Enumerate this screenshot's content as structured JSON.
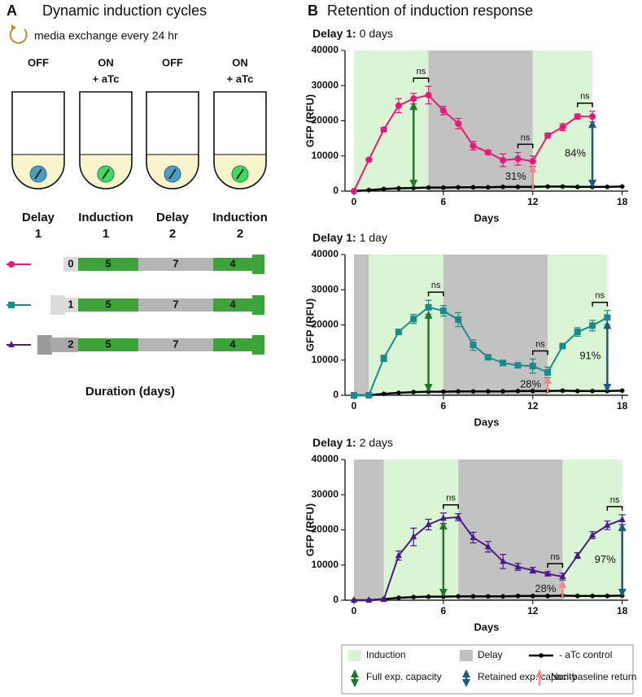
{
  "panel_a": {
    "letter": "A",
    "title": "Dynamic induction cycles",
    "media_note": "media exchange every 24 hr",
    "tubes": [
      {
        "state": "OFF",
        "induced": false
      },
      {
        "state": "ON",
        "note": "+ aTc",
        "induced": true
      },
      {
        "state": "OFF",
        "induced": false
      },
      {
        "state": "ON",
        "note": "+ aTc",
        "induced": true
      }
    ],
    "phases": [
      {
        "name": "Delay",
        "number": "1"
      },
      {
        "name": "Induction",
        "number": "1"
      },
      {
        "name": "Delay",
        "number": "2"
      },
      {
        "name": "Induction",
        "number": "2"
      }
    ],
    "schedule": [
      {
        "marker": "circle",
        "color": "#e8197a",
        "delay": 0,
        "durations": [
          5,
          7,
          4
        ]
      },
      {
        "marker": "square",
        "color": "#1a8a8a",
        "delay": 1,
        "durations": [
          5,
          7,
          4
        ]
      },
      {
        "marker": "triangle",
        "color": "#4b1a8a",
        "delay": 2,
        "durations": [
          5,
          7,
          4
        ]
      }
    ],
    "schedule_label": "Duration (days)"
  },
  "panel_b": {
    "letter": "B",
    "title": "Retention of induction response"
  },
  "legend": {
    "items": [
      {
        "label": "Induction",
        "kind": "induction",
        "color": "#d9f5d4"
      },
      {
        "label": "Delay",
        "kind": "delay",
        "color": "#c2c2c2"
      },
      {
        "label": "- aTc control",
        "kind": "control",
        "color": "#000000"
      },
      {
        "label": "Full exp. capacity",
        "kind": "full",
        "color": "#1a7a2a"
      },
      {
        "label": "Retained exp. capacity",
        "kind": "retained",
        "color": "#1a5a8a"
      },
      {
        "label": "Non-baseline return",
        "kind": "baseline",
        "color": "#f08a8a"
      }
    ]
  },
  "chart_data": [
    {
      "type": "line",
      "title": "Delay 1:",
      "subtitle": "0 days",
      "xlabel": "Days",
      "ylabel": "GFP (RFU)",
      "xlim": [
        -0.6,
        18.4
      ],
      "ylim": [
        0,
        40000
      ],
      "xticks": [
        0,
        6,
        12,
        18
      ],
      "yticks": [
        0,
        10000,
        20000,
        30000,
        40000
      ],
      "regions": [
        {
          "kind": "induction",
          "from": 0,
          "to": 5
        },
        {
          "kind": "delay",
          "from": 5,
          "to": 12
        },
        {
          "kind": "induction",
          "from": 12,
          "to": 16
        }
      ],
      "series": [
        {
          "color": "#e8197a",
          "marker": "circle",
          "x": [
            0,
            1,
            2,
            3,
            4,
            5,
            6,
            7,
            8,
            9,
            10,
            11,
            12,
            13,
            14,
            15,
            16
          ],
          "values": [
            0,
            8900,
            17500,
            24300,
            26300,
            27300,
            22900,
            19200,
            12900,
            11000,
            8800,
            9200,
            8500,
            15800,
            18200,
            21200,
            21200
          ],
          "errors": [
            0,
            400,
            600,
            2000,
            1500,
            2500,
            1200,
            1500,
            1200,
            600,
            1800,
            1800,
            1500,
            700,
            1000,
            700,
            1500
          ]
        },
        {
          "color": "#000000",
          "marker": "star",
          "x": [
            0,
            1,
            2,
            3,
            4,
            5,
            6,
            7,
            8,
            9,
            10,
            11,
            12,
            13,
            14,
            15,
            16,
            17,
            18
          ],
          "values": [
            0,
            300,
            600,
            800,
            900,
            1000,
            1000,
            1100,
            1100,
            1100,
            1200,
            1200,
            1200,
            1300,
            1300,
            1200,
            1200,
            1200,
            1300
          ]
        }
      ],
      "brackets": [
        {
          "label": "ns",
          "from": 4,
          "to": 5
        },
        {
          "label": "ns",
          "from": 11,
          "to": 12
        },
        {
          "label": "ns",
          "from": 15,
          "to": 16
        }
      ],
      "arrows": [
        {
          "kind": "full",
          "index": 4
        },
        {
          "kind": "baseline",
          "index": 12,
          "label": "31%"
        },
        {
          "kind": "retained",
          "index": 16,
          "label": "84%"
        }
      ]
    },
    {
      "type": "line",
      "title": "Delay 1:",
      "subtitle": "1 day",
      "xlabel": "Days",
      "ylabel": "GFP (RFU)",
      "xlim": [
        -0.6,
        18.4
      ],
      "ylim": [
        0,
        40000
      ],
      "xticks": [
        0,
        6,
        12,
        18
      ],
      "yticks": [
        0,
        10000,
        20000,
        30000,
        40000
      ],
      "regions": [
        {
          "kind": "delay",
          "from": 0,
          "to": 1
        },
        {
          "kind": "induction",
          "from": 1,
          "to": 6
        },
        {
          "kind": "delay",
          "from": 6,
          "to": 13
        },
        {
          "kind": "induction",
          "from": 13,
          "to": 17
        }
      ],
      "series": [
        {
          "color": "#1a8a8a",
          "marker": "square",
          "x": [
            0,
            1,
            2,
            3,
            4,
            5,
            6,
            7,
            8,
            9,
            10,
            11,
            12,
            13,
            14,
            15,
            16,
            17
          ],
          "values": [
            0,
            0,
            10500,
            18000,
            21700,
            25000,
            24000,
            21500,
            14300,
            10800,
            9200,
            8500,
            8300,
            6500,
            14000,
            18000,
            19800,
            22100
          ],
          "errors": [
            0,
            0,
            900,
            700,
            1300,
            2000,
            1500,
            2000,
            1500,
            500,
            400,
            700,
            2000,
            1500,
            700,
            1200,
            1500,
            2000
          ]
        },
        {
          "color": "#000000",
          "marker": "star",
          "x": [
            0,
            1,
            2,
            3,
            4,
            5,
            6,
            7,
            8,
            9,
            10,
            11,
            12,
            13,
            14,
            15,
            16,
            17,
            18
          ],
          "values": [
            0,
            0,
            400,
            700,
            900,
            1000,
            1000,
            1100,
            1100,
            1100,
            1100,
            1200,
            1200,
            1200,
            1300,
            1200,
            1200,
            1200,
            1300
          ]
        }
      ],
      "brackets": [
        {
          "label": "ns",
          "from": 5,
          "to": 6
        },
        {
          "label": "ns",
          "from": 12,
          "to": 13
        },
        {
          "label": "ns",
          "from": 16,
          "to": 17
        }
      ],
      "arrows": [
        {
          "kind": "full",
          "index": 5
        },
        {
          "kind": "baseline",
          "index": 13,
          "label": "28%"
        },
        {
          "kind": "retained",
          "index": 17,
          "label": "91%"
        }
      ]
    },
    {
      "type": "line",
      "title": "Delay 1:",
      "subtitle": "2 days",
      "xlabel": "Days",
      "ylabel": "GFP (RFU)",
      "xlim": [
        -0.6,
        18.4
      ],
      "ylim": [
        0,
        40000
      ],
      "xticks": [
        0,
        6,
        12,
        18
      ],
      "yticks": [
        0,
        10000,
        20000,
        30000,
        40000
      ],
      "regions": [
        {
          "kind": "delay",
          "from": 0,
          "to": 2
        },
        {
          "kind": "induction",
          "from": 2,
          "to": 7
        },
        {
          "kind": "delay",
          "from": 7,
          "to": 14
        },
        {
          "kind": "induction",
          "from": 14,
          "to": 18
        }
      ],
      "series": [
        {
          "color": "#4b1a8a",
          "marker": "triangle",
          "x": [
            0,
            1,
            2,
            3,
            4,
            5,
            6,
            7,
            8,
            9,
            10,
            11,
            12,
            13,
            14,
            15,
            16,
            17,
            18
          ],
          "values": [
            0,
            0,
            200,
            12700,
            18000,
            21500,
            23300,
            23600,
            17800,
            15200,
            11000,
            9500,
            8500,
            7500,
            6700,
            12700,
            18500,
            21300,
            22900
          ],
          "errors": [
            0,
            0,
            0,
            1300,
            2500,
            1500,
            1500,
            1000,
            1500,
            1500,
            2000,
            1000,
            800,
            600,
            1000,
            800,
            1000,
            1200,
            1400
          ]
        },
        {
          "color": "#000000",
          "marker": "star",
          "x": [
            0,
            1,
            2,
            3,
            4,
            5,
            6,
            7,
            8,
            9,
            10,
            11,
            12,
            13,
            14,
            15,
            16,
            17,
            18
          ],
          "values": [
            0,
            0,
            300,
            700,
            900,
            1000,
            1000,
            1100,
            1100,
            1100,
            1100,
            1200,
            1200,
            1200,
            1300,
            1200,
            1200,
            1200,
            1300
          ]
        }
      ],
      "brackets": [
        {
          "label": "ns",
          "from": 6,
          "to": 7
        },
        {
          "label": "ns",
          "from": 13,
          "to": 14
        },
        {
          "label": "ns",
          "from": 17,
          "to": 18
        }
      ],
      "arrows": [
        {
          "kind": "full",
          "index": 6
        },
        {
          "kind": "baseline",
          "index": 14,
          "label": "28%"
        },
        {
          "kind": "retained",
          "index": 18,
          "label": "97%"
        }
      ]
    }
  ]
}
